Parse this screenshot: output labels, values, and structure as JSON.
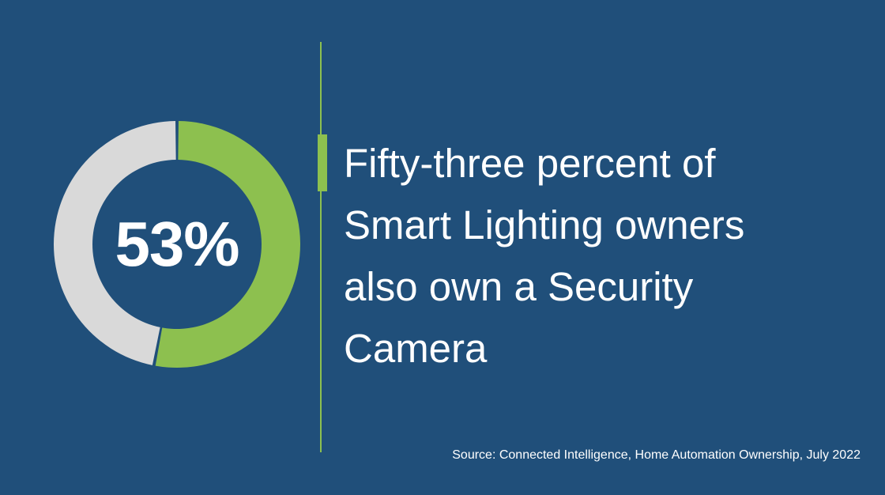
{
  "chart_data": {
    "type": "pie",
    "variant": "donut",
    "title": "",
    "center_label": "53%",
    "slices": [
      {
        "name": "",
        "value": 53,
        "color": "#8dc04f"
      },
      {
        "name": "",
        "value": 47,
        "color": "#d9d9d9"
      }
    ],
    "background": "#204f7a"
  },
  "statement": {
    "lines": [
      "Fifty-three percent of",
      "Smart Lighting owners",
      "also own a Security",
      "Camera"
    ]
  },
  "source": "Source: Connected Intelligence, Home Automation Ownership, July 2022",
  "colors": {
    "background": "#204f7a",
    "accent": "#8dc04f",
    "remainder": "#d9d9d9",
    "text": "#ffffff"
  }
}
